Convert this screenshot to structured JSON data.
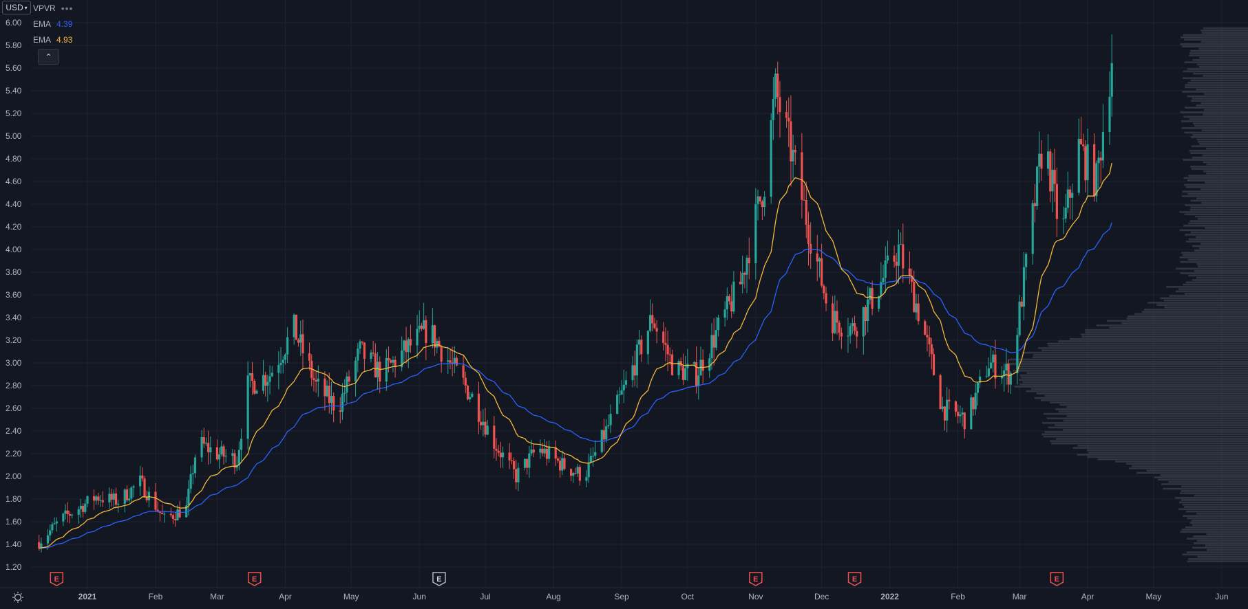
{
  "currency_button": "USD",
  "legend": {
    "vpvr_label": "VPVR",
    "more_label": "•••",
    "ema1": {
      "name": "EMA",
      "value": "4.39",
      "color": "#2962ff"
    },
    "ema2": {
      "name": "EMA",
      "value": "4.93",
      "color": "#f6b93b"
    },
    "collapse_icon": "chevron-up-icon"
  },
  "colors": {
    "up": "#26a69a",
    "down": "#ef5350",
    "ema_fast": "#f6b93b",
    "ema_slow": "#2962ff",
    "grid": "#1f2330",
    "profile": "#4a4e5a"
  },
  "chart_data": {
    "type": "candlestick",
    "y_ticks": [
      "1.20",
      "1.40",
      "1.60",
      "1.80",
      "2.00",
      "2.20",
      "2.40",
      "2.60",
      "2.80",
      "3.00",
      "3.20",
      "3.40",
      "3.60",
      "3.80",
      "4.00",
      "4.20",
      "4.40",
      "4.60",
      "4.80",
      "5.00",
      "5.20",
      "5.40",
      "5.60",
      "5.80",
      "6.00"
    ],
    "ylim": [
      1.05,
      6.05
    ],
    "x_ticks": [
      "2021",
      "Feb",
      "Mar",
      "Apr",
      "May",
      "Jun",
      "Jul",
      "Aug",
      "Sep",
      "Oct",
      "Nov",
      "Dec",
      "2022",
      "Feb",
      "Mar",
      "Apr",
      "May",
      "Jun"
    ],
    "earnings_markers": [
      "E",
      "E",
      "E",
      "E",
      "E",
      "E"
    ],
    "price_path": [
      [
        "2020-12-10",
        1.42
      ],
      [
        "2020-12-20",
        1.62
      ],
      [
        "2021-01-05",
        1.82
      ],
      [
        "2021-01-15",
        1.78
      ],
      [
        "2021-01-25",
        1.95
      ],
      [
        "2021-02-05",
        1.62
      ],
      [
        "2021-02-15",
        1.72
      ],
      [
        "2021-02-20",
        2.3
      ],
      [
        "2021-03-01",
        2.2
      ],
      [
        "2021-03-10",
        2.15
      ],
      [
        "2021-03-15",
        2.8
      ],
      [
        "2021-03-25",
        2.9
      ],
      [
        "2021-04-05",
        3.3
      ],
      [
        "2021-04-15",
        2.8
      ],
      [
        "2021-04-25",
        2.6
      ],
      [
        "2021-05-05",
        3.1
      ],
      [
        "2021-05-15",
        2.9
      ],
      [
        "2021-05-25",
        3.1
      ],
      [
        "2021-06-05",
        3.3
      ],
      [
        "2021-06-15",
        3.0
      ],
      [
        "2021-06-25",
        2.7
      ],
      [
        "2021-07-05",
        2.3
      ],
      [
        "2021-07-15",
        2.0
      ],
      [
        "2021-07-25",
        2.25
      ],
      [
        "2021-08-05",
        2.1
      ],
      [
        "2021-08-15",
        2.0
      ],
      [
        "2021-08-25",
        2.4
      ],
      [
        "2021-09-05",
        2.9
      ],
      [
        "2021-09-15",
        3.4
      ],
      [
        "2021-09-25",
        2.95
      ],
      [
        "2021-10-05",
        2.9
      ],
      [
        "2021-10-15",
        3.3
      ],
      [
        "2021-10-25",
        3.7
      ],
      [
        "2021-11-05",
        4.6
      ],
      [
        "2021-11-10",
        5.4
      ],
      [
        "2021-11-18",
        4.8
      ],
      [
        "2021-11-25",
        4.2
      ],
      [
        "2021-12-05",
        3.4
      ],
      [
        "2021-12-15",
        3.3
      ],
      [
        "2021-12-25",
        3.6
      ],
      [
        "2022-01-05",
        4.0
      ],
      [
        "2022-01-15",
        3.4
      ],
      [
        "2022-01-25",
        2.6
      ],
      [
        "2022-02-05",
        2.5
      ],
      [
        "2022-02-15",
        3.0
      ],
      [
        "2022-02-25",
        2.9
      ],
      [
        "2022-03-05",
        4.0
      ],
      [
        "2022-03-12",
        5.0
      ],
      [
        "2022-03-20",
        4.1
      ],
      [
        "2022-03-28",
        4.9
      ],
      [
        "2022-04-05",
        4.6
      ],
      [
        "2022-04-12",
        5.7
      ]
    ]
  }
}
